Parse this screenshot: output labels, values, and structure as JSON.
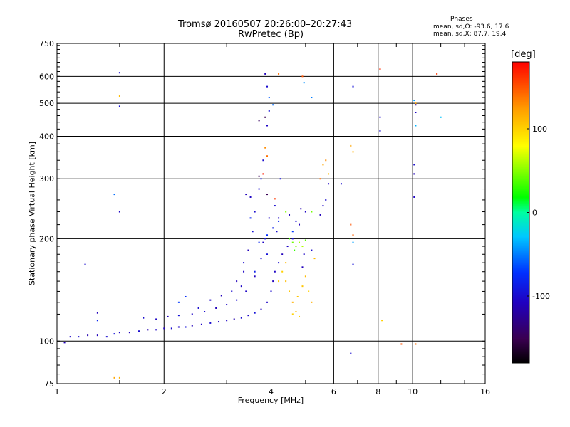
{
  "chart_data": {
    "type": "scatter",
    "title": "Tromsø 20160507 20:26:00–20:27:43",
    "subtitle": "RwPretec (Bp)",
    "xlabel": "Frequency [MHz]",
    "ylabel": "Stationary phase Virtual Height [km]",
    "x_scale": "log",
    "y_scale": "log",
    "xlim": [
      1,
      16
    ],
    "ylim": [
      75,
      750
    ],
    "x_ticks": [
      1,
      2,
      4,
      6,
      8,
      10,
      16
    ],
    "y_ticks": [
      75,
      100,
      200,
      300,
      400,
      500,
      600,
      750
    ],
    "x_gridlines": [
      2,
      4,
      6,
      8,
      10
    ],
    "y_gridlines": [
      100,
      200,
      300,
      400,
      500,
      600
    ],
    "grid": true,
    "colorbar": {
      "label": "[deg]",
      "range": [
        -180,
        180
      ],
      "ticks": [
        100,
        0,
        -100
      ]
    },
    "stats": {
      "heading": "Phases",
      "o_mode": "mean, sd,O: -93.6, 17.6",
      "x_mode": "mean, sd,X: 87.7, 19.4"
    },
    "series": [
      {
        "points": [
          [
            1.05,
            99,
            -110
          ],
          [
            1.09,
            103,
            -105
          ],
          [
            1.15,
            103,
            -100
          ],
          [
            1.22,
            104,
            -115
          ],
          [
            1.3,
            104,
            -110
          ],
          [
            1.38,
            103,
            -100
          ],
          [
            1.45,
            105,
            -95
          ],
          [
            1.5,
            106,
            -105
          ],
          [
            1.6,
            106,
            -110
          ],
          [
            1.7,
            107,
            -100
          ],
          [
            1.8,
            108,
            -115
          ],
          [
            1.9,
            108,
            -105
          ],
          [
            2.0,
            109,
            -110
          ],
          [
            2.1,
            109,
            -100
          ],
          [
            2.2,
            110,
            -105
          ],
          [
            2.3,
            110,
            -95
          ],
          [
            2.4,
            111,
            -110
          ],
          [
            2.55,
            112,
            -105
          ],
          [
            2.7,
            113,
            -100
          ],
          [
            2.85,
            114,
            -110
          ],
          [
            3.0,
            115,
            -105
          ],
          [
            3.15,
            116,
            -115
          ],
          [
            3.3,
            117,
            -100
          ],
          [
            3.45,
            119,
            -105
          ],
          [
            3.6,
            121,
            -95
          ],
          [
            3.75,
            124,
            -110
          ],
          [
            3.9,
            130,
            -105
          ],
          [
            4.0,
            140,
            -100
          ],
          [
            4.05,
            150,
            -110
          ],
          [
            4.1,
            160,
            -105
          ],
          [
            4.2,
            170,
            -100
          ],
          [
            4.3,
            180,
            -110
          ],
          [
            4.45,
            190,
            -105
          ],
          [
            4.6,
            200,
            -100
          ],
          [
            4.8,
            220,
            -110
          ],
          [
            5.0,
            240,
            -105
          ],
          [
            1.75,
            117,
            -100
          ],
          [
            1.9,
            116,
            -105
          ],
          [
            2.05,
            118,
            -110
          ],
          [
            2.2,
            119,
            -95
          ],
          [
            2.4,
            120,
            -105
          ],
          [
            2.6,
            122,
            -100
          ],
          [
            2.8,
            125,
            -110
          ],
          [
            3.0,
            128,
            -105
          ],
          [
            3.2,
            132,
            -100
          ],
          [
            3.4,
            140,
            -105
          ],
          [
            3.6,
            155,
            -110
          ],
          [
            3.75,
            175,
            -100
          ],
          [
            3.85,
            200,
            -95
          ],
          [
            3.95,
            230,
            -105
          ],
          [
            4.1,
            250,
            -100
          ],
          [
            3.35,
            160,
            -105
          ],
          [
            3.45,
            185,
            -110
          ],
          [
            3.55,
            210,
            -95
          ],
          [
            3.6,
            240,
            -100
          ],
          [
            3.5,
            265,
            -105
          ],
          [
            3.4,
            270,
            -110
          ],
          [
            3.7,
            280,
            -100
          ],
          [
            3.8,
            195,
            -105
          ],
          [
            3.9,
            180,
            -95
          ],
          [
            4.15,
            210,
            -100
          ],
          [
            4.2,
            230,
            -105
          ],
          [
            4.5,
            235,
            -110
          ],
          [
            4.7,
            225,
            -100
          ],
          [
            4.85,
            245,
            -115
          ],
          [
            2.5,
            125,
            -100
          ],
          [
            2.7,
            132,
            -105
          ],
          [
            2.9,
            136,
            -110
          ],
          [
            3.1,
            140,
            -100
          ],
          [
            3.3,
            145,
            -105
          ],
          [
            3.2,
            150,
            -110
          ],
          [
            3.35,
            170,
            -100
          ],
          [
            3.75,
            300,
            -90
          ],
          [
            3.8,
            340,
            -100
          ],
          [
            3.9,
            430,
            -105
          ],
          [
            3.95,
            475,
            -95
          ],
          [
            3.9,
            560,
            -100
          ],
          [
            3.85,
            610,
            -110
          ],
          [
            1.5,
            490,
            -95
          ],
          [
            1.5,
            615,
            -100
          ],
          [
            1.5,
            240,
            -105
          ],
          [
            1.2,
            168,
            -100
          ],
          [
            1.3,
            121,
            -110
          ],
          [
            6.8,
            560,
            -95
          ],
          [
            8.1,
            455,
            -105
          ],
          [
            8.1,
            415,
            -100
          ],
          [
            10.2,
            495,
            -110
          ],
          [
            10.2,
            470,
            -105
          ],
          [
            10.1,
            330,
            -100
          ],
          [
            10.1,
            310,
            -110
          ],
          [
            10.1,
            265,
            -105
          ],
          [
            6.7,
            92,
            -100
          ],
          [
            4.25,
            300,
            -95
          ],
          [
            5.2,
            185,
            -100
          ],
          [
            4.95,
            180,
            -105
          ],
          [
            4.9,
            165,
            -110
          ],
          [
            5.7,
            260,
            -100
          ],
          [
            5.8,
            290,
            -105
          ],
          [
            6.3,
            290,
            -100
          ],
          [
            6.8,
            168,
            -95
          ],
          [
            5.5,
            235,
            -110
          ],
          [
            5.6,
            250,
            -105
          ]
        ]
      },
      {
        "points": [
          [
            3.7,
            195,
            -80
          ],
          [
            3.9,
            205,
            -75
          ],
          [
            4.05,
            215,
            -85
          ],
          [
            4.2,
            225,
            -80
          ],
          [
            4.6,
            210,
            -70
          ],
          [
            3.5,
            230,
            -80
          ],
          [
            3.6,
            160,
            -85
          ],
          [
            2.2,
            130,
            -70
          ],
          [
            2.3,
            135,
            -75
          ],
          [
            1.3,
            115,
            -80
          ],
          [
            1.45,
            270,
            -55
          ],
          [
            3.95,
            520,
            -60
          ],
          [
            4.05,
            495,
            -55
          ],
          [
            4.95,
            575,
            -45
          ],
          [
            5.2,
            520,
            -50
          ],
          [
            10.1,
            510,
            -40
          ],
          [
            10.2,
            430,
            -35
          ],
          [
            12.0,
            455,
            -30
          ],
          [
            6.8,
            195,
            -40
          ],
          [
            4.6,
            195,
            45
          ],
          [
            4.7,
            190,
            50
          ],
          [
            4.8,
            195,
            55
          ],
          [
            4.9,
            190,
            60
          ],
          [
            5.0,
            198,
            40
          ],
          [
            4.5,
            200,
            35
          ],
          [
            4.65,
            185,
            30
          ],
          [
            5.2,
            240,
            45
          ],
          [
            4.4,
            240,
            50
          ]
        ]
      },
      {
        "points": [
          [
            4.3,
            160,
            100
          ],
          [
            4.4,
            150,
            110
          ],
          [
            4.5,
            140,
            105
          ],
          [
            4.6,
            130,
            115
          ],
          [
            4.7,
            122,
            110
          ],
          [
            4.8,
            118,
            100
          ],
          [
            4.9,
            145,
            105
          ],
          [
            5.0,
            155,
            110
          ],
          [
            5.1,
            140,
            100
          ],
          [
            5.2,
            130,
            115
          ],
          [
            4.2,
            150,
            105
          ],
          [
            4.4,
            170,
            110
          ],
          [
            4.6,
            120,
            100
          ],
          [
            4.75,
            135,
            105
          ],
          [
            5.3,
            175,
            110
          ],
          [
            5.6,
            330,
            120
          ],
          [
            5.7,
            340,
            130
          ],
          [
            5.8,
            310,
            110
          ],
          [
            5.5,
            300,
            140
          ],
          [
            6.7,
            375,
            120
          ],
          [
            6.8,
            360,
            115
          ],
          [
            1.5,
            525,
            110
          ],
          [
            1.45,
            78,
            120
          ],
          [
            1.5,
            78,
            115
          ],
          [
            8.2,
            115,
            100
          ],
          [
            4.2,
            610,
            140
          ],
          [
            4.9,
            600,
            150
          ],
          [
            6.7,
            220,
            150
          ],
          [
            6.8,
            205,
            145
          ],
          [
            9.3,
            98,
            150
          ],
          [
            10.2,
            98,
            140
          ],
          [
            3.85,
            370,
            130
          ],
          [
            3.9,
            350,
            140
          ],
          [
            10.2,
            500,
            120
          ]
        ]
      },
      {
        "points": [
          [
            3.7,
            305,
            -150
          ],
          [
            3.9,
            270,
            -150
          ],
          [
            3.7,
            445,
            -145
          ],
          [
            3.85,
            455,
            -150
          ],
          [
            8.1,
            630,
            165
          ],
          [
            11.7,
            610,
            160
          ],
          [
            3.8,
            310,
            170
          ],
          [
            4.1,
            262,
            160
          ]
        ]
      }
    ]
  }
}
